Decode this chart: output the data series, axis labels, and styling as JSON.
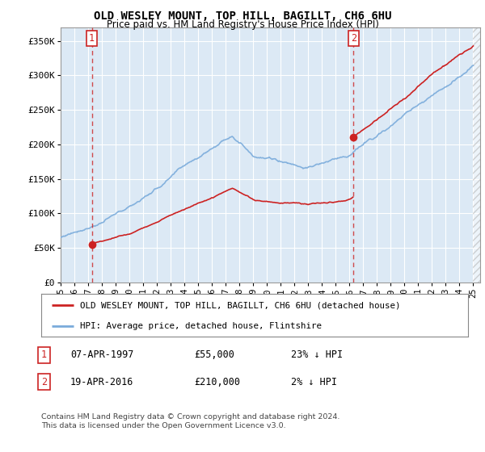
{
  "title": "OLD WESLEY MOUNT, TOP HILL, BAGILLT, CH6 6HU",
  "subtitle": "Price paid vs. HM Land Registry's House Price Index (HPI)",
  "legend_line1": "OLD WESLEY MOUNT, TOP HILL, BAGILLT, CH6 6HU (detached house)",
  "legend_line2": "HPI: Average price, detached house, Flintshire",
  "sale1_date": "07-APR-1997",
  "sale1_price": "£55,000",
  "sale1_hpi": "23% ↓ HPI",
  "sale2_date": "19-APR-2016",
  "sale2_price": "£210,000",
  "sale2_hpi": "2% ↓ HPI",
  "footer": "Contains HM Land Registry data © Crown copyright and database right 2024.\nThis data is licensed under the Open Government Licence v3.0.",
  "sale1_year": 1997.27,
  "sale1_value": 55000,
  "sale2_year": 2016.3,
  "sale2_value": 210000,
  "hpi_color": "#7aabdb",
  "price_color": "#cc2222",
  "plot_bg_color": "#dce9f5",
  "background_color": "#ffffff",
  "grid_color": "#ffffff",
  "xmin": 1995,
  "xmax": 2025.5,
  "ymin": 0,
  "ymax": 370000
}
